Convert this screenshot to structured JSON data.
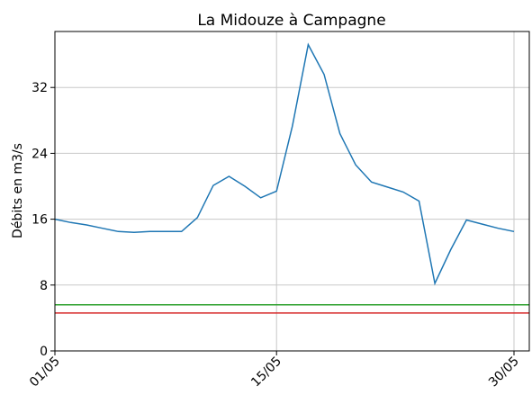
{
  "chart_data": {
    "type": "line",
    "title": "La Midouze à Campagne",
    "ylabel": "Débits en m3/s",
    "categories": [
      "01/05",
      null,
      null,
      null,
      null,
      null,
      null,
      null,
      null,
      null,
      null,
      null,
      null,
      null,
      "15/05",
      null,
      null,
      null,
      null,
      null,
      null,
      null,
      null,
      null,
      null,
      null,
      null,
      null,
      null,
      "30/05"
    ],
    "series": [
      {
        "color": "#1f77b4",
        "values": [
          16.0,
          15.6,
          15.3,
          14.9,
          14.5,
          14.4,
          14.5,
          14.5,
          14.5,
          16.2,
          20.1,
          21.2,
          20.0,
          18.6,
          19.4,
          27.3,
          37.2,
          33.6,
          26.4,
          22.6,
          20.5,
          19.9,
          19.3,
          18.2,
          8.2,
          12.3,
          15.9,
          15.4,
          14.9,
          14.5
        ]
      }
    ],
    "hlines": [
      {
        "value": 5.6,
        "color": "#2ca02c"
      },
      {
        "value": 4.6,
        "color": "#d62728"
      }
    ],
    "ylim": [
      0,
      38.8
    ],
    "yticks": [
      0,
      8,
      16,
      24,
      32
    ],
    "grid": true
  }
}
